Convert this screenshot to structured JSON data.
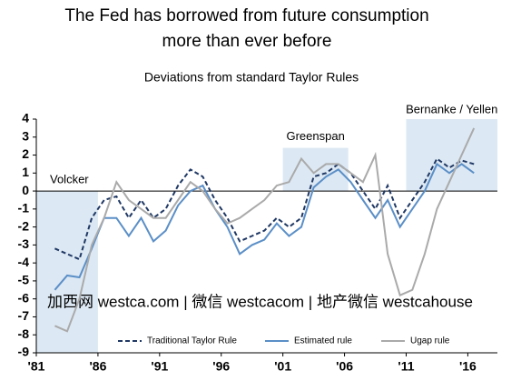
{
  "chart_data": {
    "type": "line",
    "title_lines": [
      "The Fed has borrowed from future consumption",
      "more than ever before"
    ],
    "subtitle": "Deviations from standard Taylor Rules",
    "watermark": "加西网 westca.com | 微信 westcacom | 地产微信 westcahouse",
    "regions": [
      {
        "label": "Volcker",
        "x": [
          1981,
          1986
        ],
        "y": [
          -9,
          0
        ]
      },
      {
        "label": "Greenspan",
        "x": [
          2001,
          2006.3
        ],
        "y": [
          0,
          2.4
        ]
      },
      {
        "label": "Bernanke / Yellen",
        "x": [
          2011,
          2018.4
        ],
        "y": [
          0,
          4
        ]
      }
    ],
    "x": [
      1982.5,
      1983.5,
      1984.5,
      1985.5,
      1986.5,
      1987.5,
      1988.5,
      1989.5,
      1990.5,
      1991.5,
      1992.5,
      1993.5,
      1994.5,
      1995.5,
      1996.5,
      1997.5,
      1998.5,
      1999.5,
      2000.5,
      2001.5,
      2002.5,
      2003.5,
      2004.5,
      2005.5,
      2006.5,
      2007.5,
      2008.5,
      2009.5,
      2010.5,
      2011.5,
      2012.5,
      2013.5,
      2014.5,
      2015.5,
      2016.5
    ],
    "series": [
      {
        "name": "Traditional Taylor Rule",
        "color": "#1f3864",
        "style": "dashed",
        "values": [
          -3.2,
          -3.5,
          -3.8,
          -1.5,
          -0.5,
          -0.3,
          -1.5,
          -0.5,
          -1.5,
          -1.0,
          0.3,
          1.2,
          0.8,
          -0.5,
          -1.5,
          -2.8,
          -2.5,
          -2.2,
          -1.5,
          -2.0,
          -1.5,
          0.8,
          1.0,
          1.5,
          1.0,
          0,
          -1.0,
          0.3,
          -1.5,
          -0.5,
          0.5,
          1.8,
          1.3,
          1.7,
          1.5
        ]
      },
      {
        "name": "Estimated rule",
        "color": "#5b8fc7",
        "style": "solid",
        "values": [
          -5.5,
          -4.7,
          -4.8,
          -3.2,
          -1.5,
          -1.5,
          -2.5,
          -1.5,
          -2.8,
          -2.2,
          -0.8,
          0,
          0.3,
          -1.0,
          -2.0,
          -3.5,
          -3.0,
          -2.7,
          -1.8,
          -2.5,
          -2.0,
          0.2,
          0.8,
          1.2,
          0.5,
          -0.5,
          -1.5,
          -0.5,
          -2.0,
          -1.0,
          0,
          1.5,
          1.0,
          1.5,
          1.0
        ]
      },
      {
        "name": "Ugap rule",
        "color": "#aaaaaa",
        "style": "solid",
        "values": [
          -7.5,
          -7.8,
          -6.0,
          -3.0,
          -1.5,
          0.5,
          -0.5,
          -1.0,
          -1.5,
          -1.5,
          -0.5,
          0.5,
          0,
          -1.0,
          -1.8,
          -1.5,
          -1.0,
          -0.5,
          0.3,
          0.5,
          1.8,
          1.0,
          1.5,
          1.5,
          1.0,
          0.5,
          2.0,
          -3.5,
          -5.8,
          -5.5,
          -3.5,
          -1.0,
          0.5,
          2.0,
          3.5
        ]
      }
    ],
    "xlim": [
      1981,
      2018.4
    ],
    "xticks": [
      {
        "value": 1981,
        "label": "'81"
      },
      {
        "value": 1986,
        "label": "'86"
      },
      {
        "value": 1991,
        "label": "'91"
      },
      {
        "value": 1996,
        "label": "'96"
      },
      {
        "value": 2001,
        "label": "'01"
      },
      {
        "value": 2006,
        "label": "'06"
      },
      {
        "value": 2011,
        "label": "'11"
      },
      {
        "value": 2016,
        "label": "'16"
      }
    ],
    "ylim": [
      -9,
      4
    ],
    "yticks": [
      -9,
      -8,
      -7,
      -6,
      -5,
      -4,
      -3,
      -2,
      -1,
      0,
      1,
      2,
      3,
      4
    ]
  }
}
